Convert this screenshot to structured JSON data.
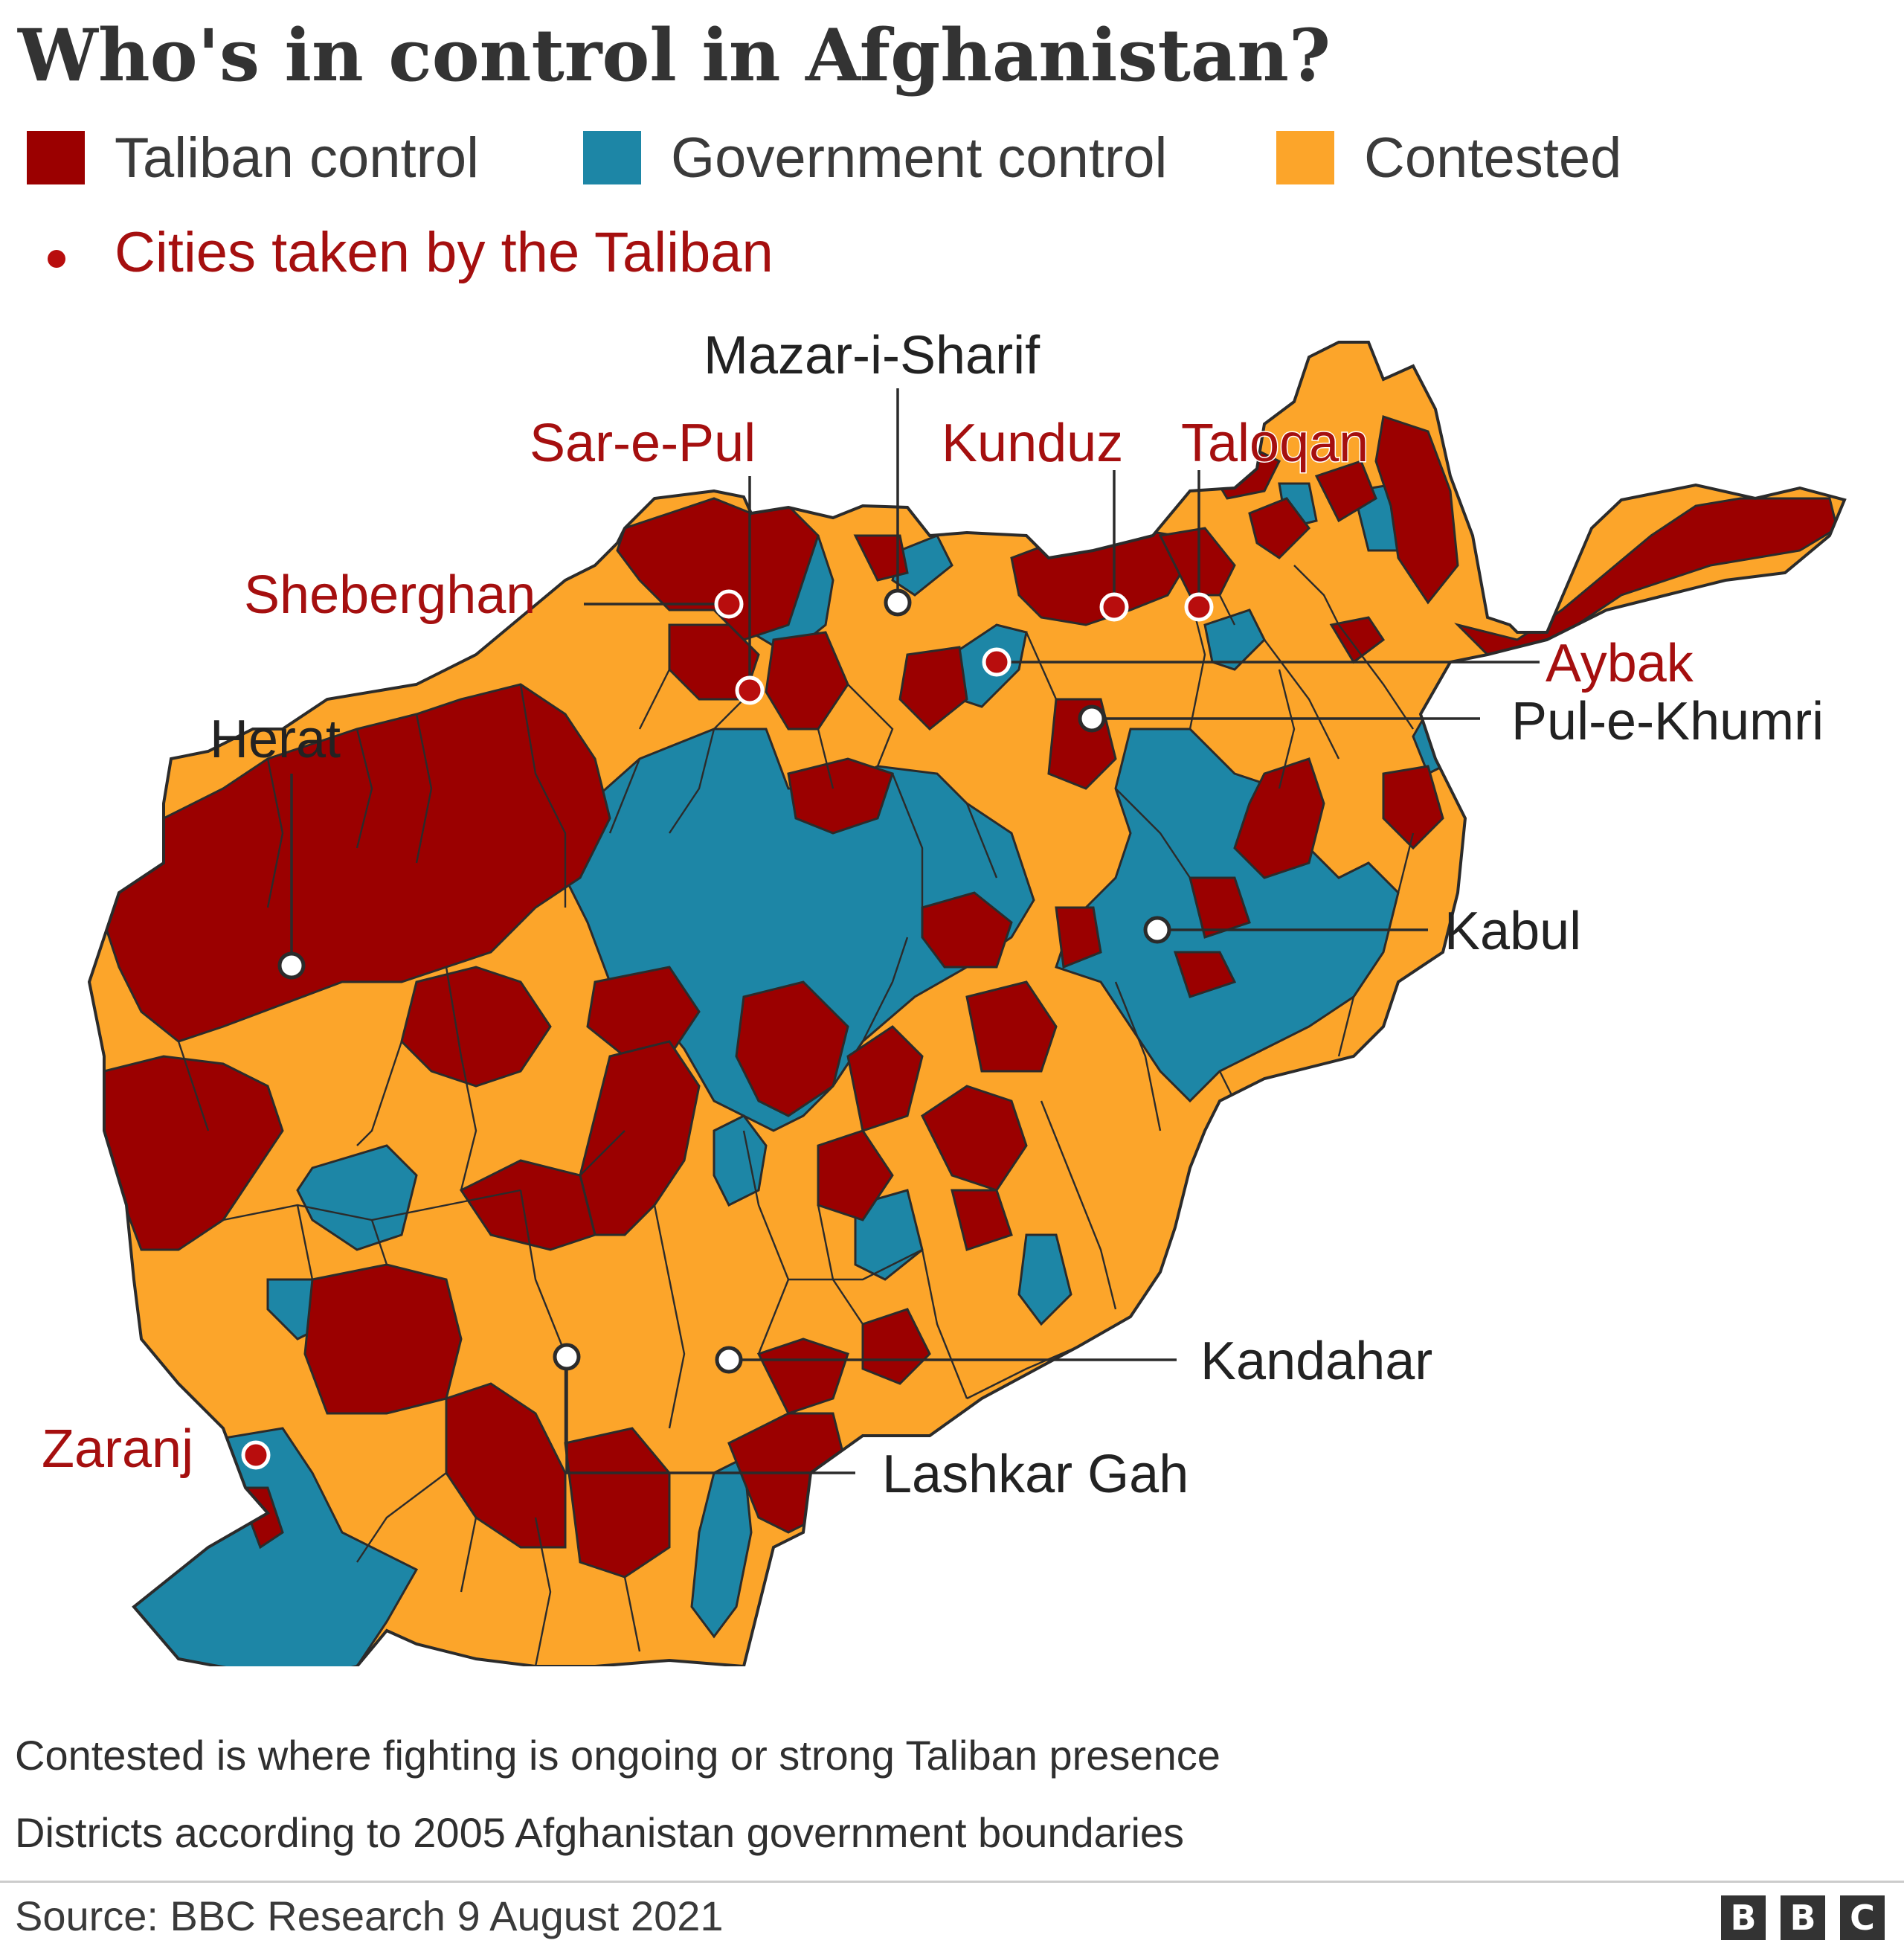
{
  "title": "Who's in control in Afghanistan?",
  "legend": [
    {
      "key": "taliban",
      "label": "Taliban control",
      "color": "#9b0000"
    },
    {
      "key": "government",
      "label": "Government control",
      "color": "#1d86a6"
    },
    {
      "key": "contested",
      "label": "Contested",
      "color": "#fca52a"
    }
  ],
  "cities_legend": {
    "label": "Cities taken by the Taliban",
    "color": "#b80d0d"
  },
  "cities": [
    {
      "name": "Mazar-i-Sharif",
      "taken": false
    },
    {
      "name": "Sar-e-Pul",
      "taken": true
    },
    {
      "name": "Kunduz",
      "taken": true
    },
    {
      "name": "Taloqan",
      "taken": true
    },
    {
      "name": "Sheberghan",
      "taken": true
    },
    {
      "name": "Aybak",
      "taken": true
    },
    {
      "name": "Pul-e-Khumri",
      "taken": false
    },
    {
      "name": "Herat",
      "taken": false
    },
    {
      "name": "Kabul",
      "taken": false
    },
    {
      "name": "Kandahar",
      "taken": false
    },
    {
      "name": "Zaranj",
      "taken": true
    },
    {
      "name": "Lashkar Gah",
      "taken": false
    }
  ],
  "notes": [
    "Contested is where fighting is ongoing or strong Taliban presence",
    "Districts according to 2005 Afghanistan government boundaries"
  ],
  "source": "Source: BBC Research 9 August 2021",
  "logo": [
    "B",
    "B",
    "C"
  ]
}
